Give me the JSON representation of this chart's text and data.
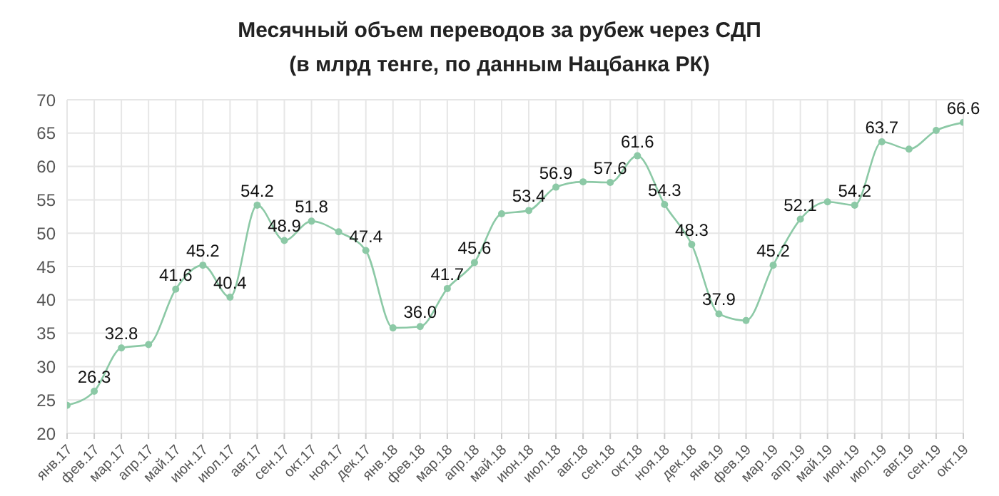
{
  "chart_data": {
    "type": "line",
    "title": "Месячный объем переводов за рубеж через СДП",
    "subtitle": "(в млрд тенге, по данным Нацбанка РК)",
    "categories": [
      "янв.17",
      "фев.17",
      "мар.17",
      "апр.17",
      "май.17",
      "июн.17",
      "июл.17",
      "авг.17",
      "сен.17",
      "окт.17",
      "ноя.17",
      "дек.17",
      "янв.18",
      "фев.18",
      "мар.18",
      "апр.18",
      "май.18",
      "июн.18",
      "июл.18",
      "авг.18",
      "сен.18",
      "окт.18",
      "ноя.18",
      "дек.18",
      "янв.19",
      "фев.19",
      "мар.19",
      "апр.19",
      "май.19",
      "июн.19",
      "июл.19",
      "авг.19",
      "сен.19",
      "окт.19"
    ],
    "series": [
      {
        "color": "#8cc9a6",
        "values": [
          24.2,
          26.3,
          32.8,
          33.3,
          41.6,
          45.2,
          40.4,
          54.2,
          48.9,
          51.8,
          50.2,
          47.4,
          35.8,
          36.0,
          41.7,
          45.6,
          52.9,
          53.4,
          56.9,
          57.7,
          57.6,
          61.6,
          54.3,
          48.3,
          37.9,
          36.9,
          45.2,
          52.1,
          54.7,
          54.2,
          63.7,
          62.6,
          65.4,
          66.6
        ],
        "value_labels": [
          null,
          "26.3",
          "32.8",
          null,
          "41.6",
          "45.2",
          "40.4",
          "54.2",
          "48.9",
          "51.8",
          null,
          "47.4",
          null,
          "36.0",
          "41.7",
          "45.6",
          null,
          "53.4",
          "56.9",
          null,
          "57.6",
          "61.6",
          "54.3",
          "48.3",
          "37.9",
          null,
          "45.2",
          "52.1",
          null,
          "54.2",
          "63.7",
          null,
          null,
          "66.6"
        ]
      }
    ],
    "ylim": [
      20,
      70
    ],
    "yticks": [
      20,
      25,
      30,
      35,
      40,
      45,
      50,
      55,
      60,
      65,
      70
    ],
    "grid": true,
    "marker": "circle",
    "line_style": "solid"
  }
}
